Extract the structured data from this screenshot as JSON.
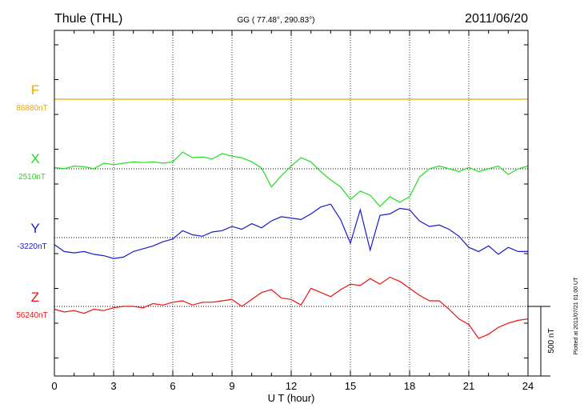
{
  "header": {
    "station": "Thule (THL)",
    "coords": "GG ( 77.48°, 290.83°)",
    "date": "2011/06/20"
  },
  "chart_data": {
    "type": "line",
    "xlabel": "U T (hour)",
    "xlim": [
      0,
      24
    ],
    "xticks": [
      "0",
      "3",
      "6",
      "9",
      "12",
      "15",
      "18",
      "21",
      "24"
    ],
    "grid": true,
    "scale_bar": {
      "label": "500 nT",
      "value_nT": 500
    },
    "plotted_note": "Plotted at 2011/07/21 01:00 UT",
    "series": [
      {
        "name": "F",
        "baseline_label": "88880nT",
        "color": "#f0a800",
        "x": [
          0,
          24
        ],
        "dev": [
          0,
          0
        ]
      },
      {
        "name": "X",
        "baseline_label": "2510nT",
        "color": "#22dd22",
        "x": [
          0,
          0.5,
          1,
          1.5,
          2,
          2.5,
          3,
          3.5,
          4,
          4.5,
          5,
          5.5,
          6,
          6.5,
          7,
          7.5,
          8,
          8.5,
          9,
          9.5,
          10,
          10.5,
          11,
          11.5,
          12,
          12.5,
          13,
          13.5,
          14,
          14.5,
          15,
          15.5,
          16,
          16.5,
          17,
          17.5,
          18,
          18.5,
          19,
          19.5,
          20,
          20.5,
          21,
          21.5,
          22,
          22.5,
          23,
          23.5,
          24
        ],
        "dev": [
          10,
          0,
          20,
          15,
          0,
          40,
          30,
          40,
          50,
          45,
          50,
          40,
          50,
          120,
          80,
          85,
          70,
          110,
          90,
          80,
          50,
          5,
          -130,
          -50,
          20,
          80,
          50,
          -20,
          -80,
          -130,
          -220,
          -160,
          -190,
          -270,
          -200,
          -240,
          -200,
          -60,
          0,
          20,
          0,
          -20,
          10,
          -20,
          0,
          20,
          -40,
          0,
          20
        ]
      },
      {
        "name": "Y",
        "baseline_label": "-3220nT",
        "color": "#1a1acc",
        "x": [
          0,
          0.5,
          1,
          1.5,
          2,
          2.5,
          3,
          3.5,
          4,
          4.5,
          5,
          5.5,
          6,
          6.5,
          7,
          7.5,
          8,
          8.5,
          9,
          9.5,
          10,
          10.5,
          11,
          11.5,
          12,
          12.5,
          13,
          13.5,
          14,
          14.5,
          15,
          15.5,
          16,
          16.5,
          17,
          17.5,
          18,
          18.5,
          19,
          19.5,
          20,
          20.5,
          21,
          21.5,
          22,
          22.5,
          23,
          23.5,
          24
        ],
        "dev": [
          -50,
          -100,
          -110,
          -100,
          -120,
          -130,
          -150,
          -140,
          -100,
          -80,
          -60,
          -30,
          -10,
          50,
          20,
          10,
          40,
          50,
          80,
          60,
          100,
          70,
          120,
          150,
          140,
          130,
          170,
          220,
          240,
          130,
          -40,
          200,
          -90,
          160,
          170,
          210,
          200,
          120,
          80,
          90,
          60,
          10,
          -70,
          -100,
          -60,
          -120,
          -70,
          -100,
          -100
        ]
      },
      {
        "name": "Z",
        "baseline_label": "56240nT",
        "color": "#ee1111",
        "x": [
          0,
          0.5,
          1,
          1.5,
          2,
          2.5,
          3,
          3.5,
          4,
          4.5,
          5,
          5.5,
          6,
          6.5,
          7,
          7.5,
          8,
          8.5,
          9,
          9.5,
          10,
          10.5,
          11,
          11.5,
          12,
          12.5,
          13,
          13.5,
          14,
          14.5,
          15,
          15.5,
          16,
          16.5,
          17,
          17.5,
          18,
          18.5,
          19,
          19.5,
          20,
          20.5,
          21,
          21.5,
          22,
          22.5,
          23,
          23.5,
          24
        ],
        "dev": [
          -20,
          -40,
          -30,
          -50,
          -20,
          -30,
          -10,
          0,
          0,
          -10,
          20,
          10,
          30,
          40,
          10,
          30,
          30,
          40,
          50,
          0,
          50,
          100,
          120,
          60,
          50,
          10,
          130,
          100,
          70,
          120,
          160,
          150,
          200,
          160,
          210,
          180,
          130,
          80,
          40,
          40,
          -20,
          -90,
          -130,
          -230,
          -200,
          -150,
          -120,
          -100,
          -90
        ]
      }
    ]
  }
}
